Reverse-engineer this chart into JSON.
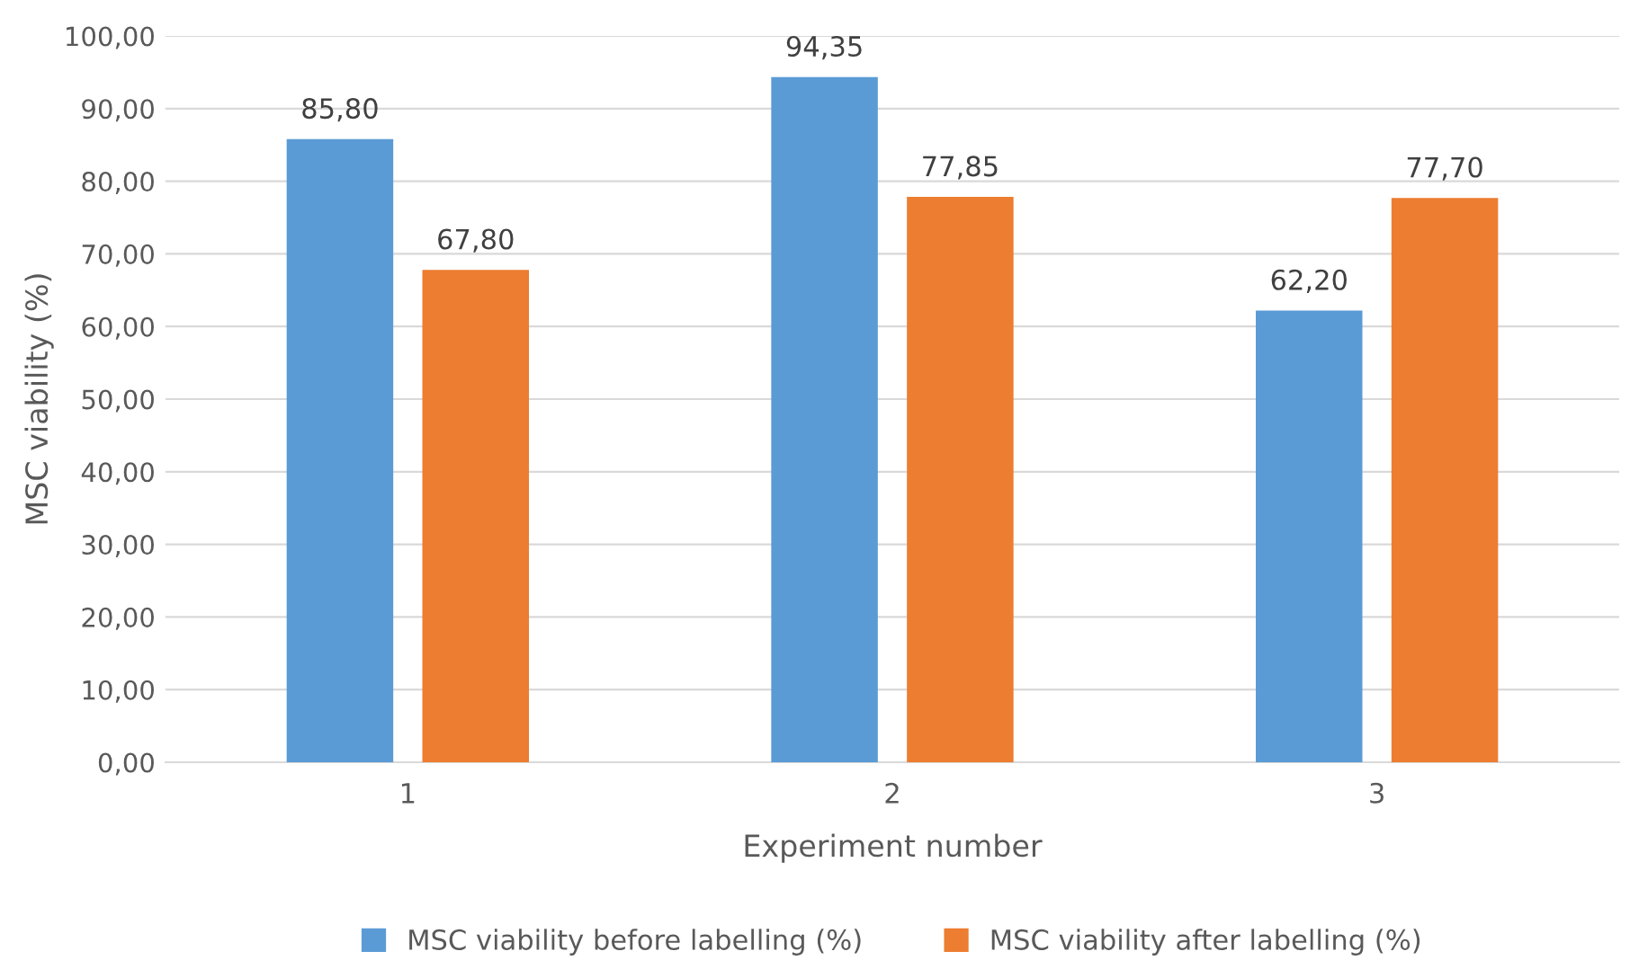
{
  "chart_data": {
    "type": "bar",
    "xlabel": "Experiment number",
    "ylabel": "MSC viability (%)",
    "categories": [
      "1",
      "2",
      "3"
    ],
    "series": [
      {
        "name": "MSC viability before labelling (%)",
        "color": "#5b9bd5",
        "values": [
          85.8,
          94.35,
          62.2
        ],
        "value_labels": [
          "85,80",
          "94,35",
          "62,20"
        ]
      },
      {
        "name": "MSC viability after labelling (%)",
        "color": "#ed7d31",
        "values": [
          67.8,
          77.85,
          77.7
        ],
        "value_labels": [
          "67,80",
          "77,85",
          "77,70"
        ]
      }
    ],
    "ylim": [
      0,
      100
    ],
    "yticks": [
      {
        "value": 0,
        "label": "0,00"
      },
      {
        "value": 10,
        "label": "10,00"
      },
      {
        "value": 20,
        "label": "20,00"
      },
      {
        "value": 30,
        "label": "30,00"
      },
      {
        "value": 40,
        "label": "40,00"
      },
      {
        "value": 50,
        "label": "50,00"
      },
      {
        "value": 60,
        "label": "60,00"
      },
      {
        "value": 70,
        "label": "70,00"
      },
      {
        "value": 80,
        "label": "80,00"
      },
      {
        "value": 90,
        "label": "90,00"
      },
      {
        "value": 100,
        "label": "100,00"
      }
    ],
    "grid": "y",
    "legend": "bottom"
  }
}
